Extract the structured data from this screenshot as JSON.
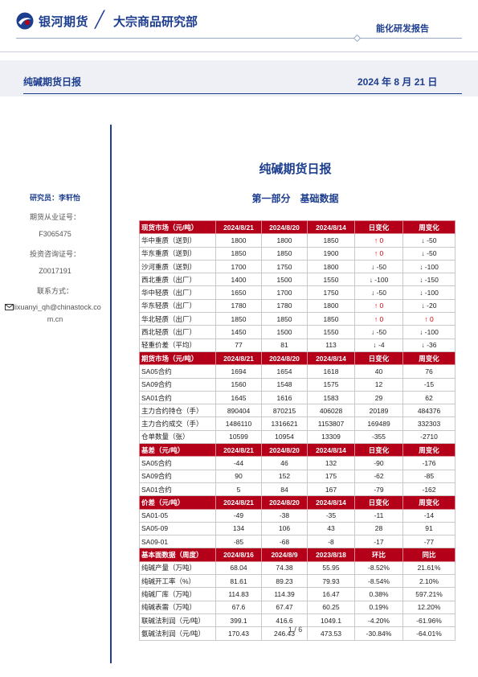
{
  "header": {
    "brand": "银河期货",
    "slash": "╱",
    "dept": "大宗商品研究部",
    "report_type": "能化研发报告",
    "band_title": "纯碱期货日报",
    "band_date": "2024 年 8 月 21 日",
    "brand_color": "#1d3d8f",
    "accent_color": "#b40019"
  },
  "sidebar": {
    "researcher": "研究员：李轩怡",
    "license_label": "期货从业证号：",
    "license_no": "F3065475",
    "advisor_label": "投资咨询证号：",
    "advisor_no": "Z0017191",
    "contact_label": "联系方式：",
    "email_line1": "lixuanyi_qh@chinastock.co",
    "email_line2": "m.cn",
    "email_icon": "mail-icon"
  },
  "main": {
    "title": "纯碱期货日报",
    "section": "第一部分　基础数据"
  },
  "table": [
    {
      "header": true,
      "cells": [
        "现货市场（元/吨）",
        "2024/8/21",
        "2024/8/20",
        "2024/8/14",
        "日变化",
        "周变化"
      ]
    },
    {
      "cells": [
        "华中重质（送到）",
        "1800",
        "1800",
        "1850",
        "↑ 0",
        "↓ -50"
      ]
    },
    {
      "cells": [
        "华东重质（送到）",
        "1850",
        "1850",
        "1900",
        "↑ 0",
        "↓ -50"
      ]
    },
    {
      "cells": [
        "沙河重质（送到）",
        "1700",
        "1750",
        "1800",
        "↓ -50",
        "↓ -100"
      ]
    },
    {
      "cells": [
        "西北重质（出厂）",
        "1400",
        "1500",
        "1550",
        "↓ -100",
        "↓ -150"
      ]
    },
    {
      "cells": [
        "华中轻质（出厂）",
        "1650",
        "1700",
        "1750",
        "↓ -50",
        "↓ -100"
      ]
    },
    {
      "cells": [
        "华东轻质（出厂）",
        "1780",
        "1780",
        "1800",
        "↑ 0",
        "↓ -20"
      ]
    },
    {
      "cells": [
        "华北轻质（出厂）",
        "1850",
        "1850",
        "1850",
        "↑ 0",
        "↑ 0"
      ]
    },
    {
      "cells": [
        "西北轻质（出厂）",
        "1450",
        "1500",
        "1550",
        "↓ -50",
        "↓ -100"
      ]
    },
    {
      "cells": [
        "轻重价差（平均）",
        "77",
        "81",
        "113",
        "↓ -4",
        "↓ -36"
      ]
    },
    {
      "header": true,
      "cells": [
        "期货市场（元/吨）",
        "2024/8/21",
        "2024/8/20",
        "2024/8/14",
        "日变化",
        "周变化"
      ]
    },
    {
      "cells": [
        "SA05合约",
        "1694",
        "1654",
        "1618",
        "40",
        "76"
      ]
    },
    {
      "cells": [
        "SA09合约",
        "1560",
        "1548",
        "1575",
        "12",
        "-15"
      ]
    },
    {
      "cells": [
        "SA01合约",
        "1645",
        "1616",
        "1583",
        "29",
        "62"
      ]
    },
    {
      "cells": [
        "主力合约持仓（手）",
        "890404",
        "870215",
        "406028",
        "20189",
        "484376"
      ]
    },
    {
      "cells": [
        "主力合约成交（手）",
        "1486110",
        "1316621",
        "1153807",
        "169489",
        "332303"
      ]
    },
    {
      "cells": [
        "仓单数量（张）",
        "10599",
        "10954",
        "13309",
        "-355",
        "-2710"
      ]
    },
    {
      "header": true,
      "cells": [
        "基差（元/吨）",
        "2024/8/21",
        "2024/8/20",
        "2024/8/14",
        "日变化",
        "周变化"
      ]
    },
    {
      "cells": [
        "SA05合约",
        "-44",
        "46",
        "132",
        "-90",
        "-176"
      ]
    },
    {
      "cells": [
        "SA09合约",
        "90",
        "152",
        "175",
        "-62",
        "-85"
      ]
    },
    {
      "cells": [
        "SA01合约",
        "5",
        "84",
        "167",
        "-79",
        "-162"
      ]
    },
    {
      "header": true,
      "cells": [
        "价差（元/吨）",
        "2024/8/21",
        "2024/8/20",
        "2024/8/14",
        "日变化",
        "周变化"
      ]
    },
    {
      "cells": [
        "SA01-05",
        "-49",
        "-38",
        "-35",
        "-11",
        "-14"
      ]
    },
    {
      "cells": [
        "SA05-09",
        "134",
        "106",
        "43",
        "28",
        "91"
      ]
    },
    {
      "cells": [
        "SA09-01",
        "-85",
        "-68",
        "-8",
        "-17",
        "-77"
      ]
    },
    {
      "header": true,
      "cells": [
        "基本面数据（周度）",
        "2024/8/16",
        "2024/8/9",
        "2023/8/18",
        "环比",
        "同比"
      ]
    },
    {
      "cells": [
        "纯碱产量（万吨）",
        "68.04",
        "74.38",
        "55.95",
        "-8.52%",
        "21.61%"
      ]
    },
    {
      "cells": [
        "纯碱开工率（%）",
        "81.61",
        "89.23",
        "79.93",
        "-8.54%",
        "2.10%"
      ]
    },
    {
      "cells": [
        "纯碱厂库（万吨）",
        "114.83",
        "114.39",
        "16.47",
        "0.38%",
        "597.21%"
      ]
    },
    {
      "cells": [
        "纯碱表需（万吨）",
        "67.6",
        "67.47",
        "60.25",
        "0.19%",
        "12.20%"
      ]
    },
    {
      "cells": [
        "联碱法利润（元/吨）",
        "399.1",
        "416.6",
        "1049.1",
        "-4.20%",
        "-61.96%"
      ]
    },
    {
      "cells": [
        "氨碱法利润（元/吨）",
        "170.43",
        "246.43",
        "473.53",
        "-30.84%",
        "-64.01%"
      ]
    }
  ],
  "footer": {
    "page": "1 / 6"
  }
}
